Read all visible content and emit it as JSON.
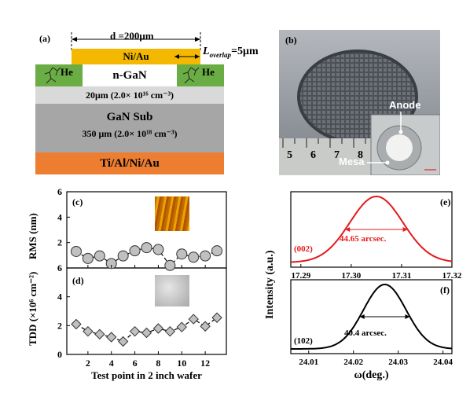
{
  "panels": {
    "a": {
      "label": "(a)",
      "d_label": "d =200μm",
      "overlap_label": "L",
      "overlap_sub": "overlap",
      "overlap_value": "=5μm",
      "contact": "Ni/Au",
      "he_left": "He",
      "he_right": "He",
      "n_gan": "n-GaN",
      "n_gan_spec": "20μm (2.0× 10¹⁶ cm⁻³)",
      "sub": "GaN  Sub",
      "sub_spec": "350 μm (2.0× 10¹⁸ cm⁻³)",
      "bottom": "Ti/Al/Ni/Au",
      "colors": {
        "contact": "#f5b800",
        "he": "#6aad45",
        "ngan": "#d9d9d9",
        "sub": "#a6a6a6",
        "bottom": "#ed7d31"
      }
    },
    "b": {
      "label": "(b)",
      "anode": "Anode",
      "mesa": "Mesa",
      "ruler_numbers": [
        "5",
        "6",
        "7",
        "8"
      ]
    },
    "c": {
      "label": "(c)"
    },
    "d": {
      "label": "(d)"
    },
    "e": {
      "label": "(e)",
      "peak": "(002)",
      "fwhm": "44.65 arcsec."
    },
    "f": {
      "label": "(f)",
      "peak": "(102)",
      "fwhm": "40.4 arcsec."
    }
  },
  "chart_data": [
    {
      "type": "line",
      "panel": "c",
      "ylabel": "RMS (nm)",
      "x": [
        1,
        2,
        3,
        4,
        5,
        6,
        7,
        8,
        9,
        10,
        11,
        12,
        13
      ],
      "y": [
        1.3,
        0.75,
        0.95,
        0.35,
        0.95,
        1.35,
        1.6,
        1.45,
        0.2,
        1.1,
        0.85,
        0.95,
        1.35
      ],
      "ylim": [
        0,
        6
      ],
      "yticks": [
        "0",
        "2",
        "4",
        "6"
      ],
      "marker": "circle",
      "marker_color": "#c0c0c0"
    },
    {
      "type": "line",
      "panel": "d",
      "ylabel": "TDD (×10⁶ cm⁻²)",
      "xlabel": "Test point in 2 inch wafer",
      "x": [
        1,
        2,
        3,
        4,
        5,
        6,
        7,
        8,
        9,
        10,
        11,
        12,
        13
      ],
      "y": [
        2.1,
        1.6,
        1.4,
        1.2,
        0.9,
        1.6,
        1.5,
        1.8,
        1.6,
        1.9,
        2.45,
        1.95,
        2.55
      ],
      "xlim": [
        0.2,
        13.8
      ],
      "ylim": [
        0,
        6
      ],
      "xticks": [
        "2",
        "4",
        "6",
        "8",
        "10",
        "12"
      ],
      "yticks": [
        "0",
        "2",
        "4",
        "6"
      ],
      "marker": "diamond",
      "marker_color": "#c0c0c0"
    },
    {
      "type": "line",
      "panel": "e",
      "xticks": [
        "17.29",
        "17.30",
        "17.31",
        "17.32"
      ],
      "xlim": [
        17.288,
        17.32
      ],
      "peak_center": 17.305,
      "fwhm_deg": 0.0124,
      "color": "#e31a1c"
    },
    {
      "type": "line",
      "panel": "f",
      "xlabel": "ω(deg.)",
      "xticks": [
        "24.01",
        "24.02",
        "24.03",
        "24.04"
      ],
      "xlim": [
        24.006,
        24.042
      ],
      "peak_center": 24.027,
      "fwhm_deg": 0.0112,
      "color": "#000000"
    }
  ],
  "shared": {
    "intensity_label": "Intensity (a.u.)"
  }
}
